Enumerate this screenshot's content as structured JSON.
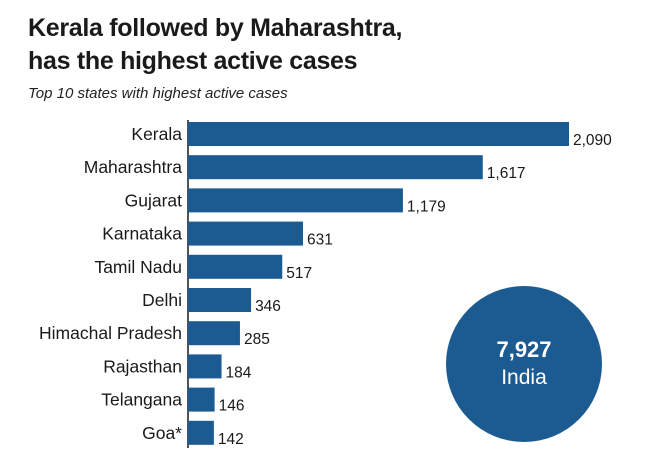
{
  "title_line1": "Kerala followed by Maharashtra,",
  "title_line2": "has the highest active cases",
  "subtitle": "Top 10 states with highest active cases",
  "colors": {
    "bar": "#1c5b92",
    "circle": "#1c5b92",
    "axis": "#1a1a1a"
  },
  "total": {
    "value": "7,927",
    "label": "India"
  },
  "chart_data": {
    "type": "bar",
    "orientation": "horizontal",
    "title": "Kerala followed by Maharashtra, has the highest active cases",
    "subtitle": "Top 10 states with highest active cases",
    "categories": [
      "Kerala",
      "Maharashtra",
      "Gujarat",
      "Karnataka",
      "Tamil Nadu",
      "Delhi",
      "Himachal Pradesh",
      "Rajasthan",
      "Telangana",
      "Goa*"
    ],
    "values": [
      2090,
      1617,
      1179,
      631,
      517,
      346,
      285,
      184,
      146,
      142
    ],
    "value_labels": [
      "2,090",
      "1,617",
      "1,179",
      "631",
      "517",
      "346",
      "285",
      "184",
      "146",
      "142"
    ],
    "xlim": [
      0,
      2090
    ],
    "grid": false,
    "legend": "none"
  }
}
